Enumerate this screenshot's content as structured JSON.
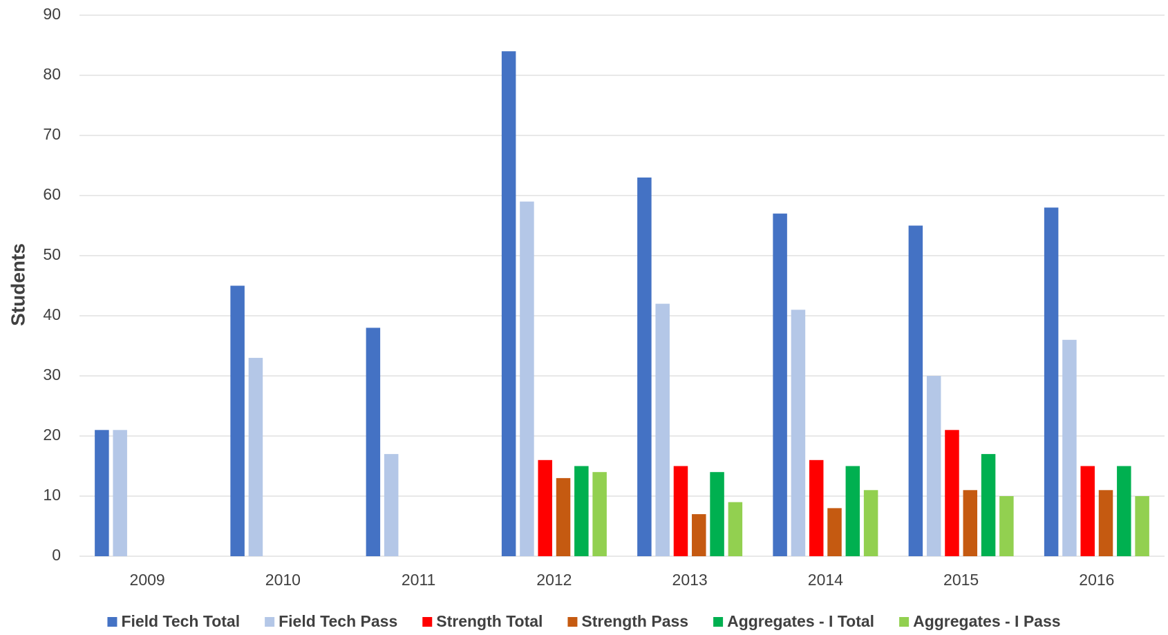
{
  "chart_data": {
    "type": "bar",
    "y_label": "Students",
    "categories": [
      "2009",
      "2010",
      "2011",
      "2012",
      "2013",
      "2014",
      "2015",
      "2016"
    ],
    "series": [
      {
        "name": "Field Tech Total",
        "color": "#4472c4",
        "values": [
          21,
          45,
          38,
          84,
          63,
          57,
          55,
          58
        ]
      },
      {
        "name": "Field Tech Pass",
        "color": "#b4c7e7",
        "values": [
          21,
          33,
          17,
          59,
          42,
          41,
          30,
          36
        ]
      },
      {
        "name": "Strength Total",
        "color": "#ff0000",
        "values": [
          null,
          null,
          null,
          16,
          15,
          16,
          21,
          15
        ]
      },
      {
        "name": "Strength Pass",
        "color": "#c55a11",
        "values": [
          null,
          null,
          null,
          13,
          7,
          8,
          11,
          11
        ]
      },
      {
        "name": "Aggregates - I Total",
        "color": "#00b050",
        "values": [
          null,
          null,
          null,
          15,
          14,
          15,
          17,
          15
        ]
      },
      {
        "name": "Aggregates - I Pass",
        "color": "#92d050",
        "values": [
          null,
          null,
          null,
          14,
          9,
          11,
          10,
          10
        ]
      }
    ],
    "ylim": [
      0,
      90
    ],
    "yticks": [
      0,
      10,
      20,
      30,
      40,
      50,
      60,
      70,
      80,
      90
    ],
    "grid": true,
    "legend": "bottom"
  }
}
